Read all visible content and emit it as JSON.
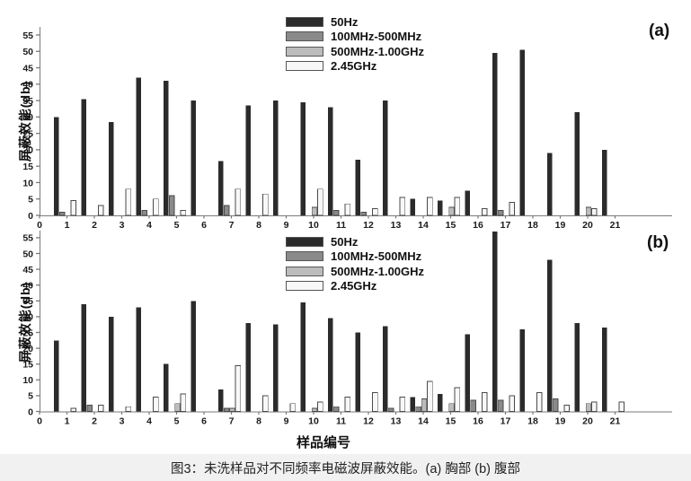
{
  "figure": {
    "caption": "图3：未洗样品对不同频率电磁波屏蔽效能。(a) 胸部 (b) 腹部",
    "xlabel": "样品编号",
    "ylabel": "屏蔽效能(db)"
  },
  "legend": [
    "50Hz",
    "100MHz-500MHz",
    "500MHz-1.00GHz",
    "2.45GHz"
  ],
  "colors": {
    "series": [
      "#2b2b2b",
      "#8a8a8a",
      "#bcbcbc",
      "#f8f8f8"
    ],
    "bar_border": "#4a4a4a",
    "axis": "#7a7a7a",
    "tick_text": "#1a1a1a",
    "caption_band": "#f1f1f1"
  },
  "chart_data": [
    {
      "type": "bar",
      "panel_label": "(a)",
      "panel_region": "胸部",
      "xlabel": "样品编号",
      "ylabel": "屏蔽效能(db)",
      "ylim": [
        0,
        55
      ],
      "ytick_step": 5,
      "xticks": [
        0,
        1,
        2,
        3,
        4,
        5,
        6,
        7,
        8,
        9,
        10,
        11,
        12,
        13,
        14,
        15,
        16,
        17,
        18,
        19,
        20,
        21
      ],
      "grid": false,
      "legend_position": "top-center-inside",
      "categories": [
        1,
        2,
        3,
        4,
        5,
        6,
        7,
        8,
        9,
        10,
        11,
        12,
        13,
        14,
        15,
        16,
        17,
        18,
        19,
        20,
        21
      ],
      "series": [
        {
          "name": "50Hz",
          "values": [
            30,
            35.5,
            28.5,
            42,
            41,
            35,
            16.5,
            33.5,
            35,
            34.5,
            33,
            17,
            35,
            5,
            4.5,
            7.5,
            49.5,
            50.5,
            19,
            31.5,
            20
          ]
        },
        {
          "name": "100MHz-500MHz",
          "values": [
            1,
            0,
            0,
            1.5,
            6,
            0,
            3,
            0,
            0,
            0,
            1.5,
            1,
            0,
            0,
            0,
            0,
            1.5,
            0,
            0,
            0,
            0
          ]
        },
        {
          "name": "500MHz-1.00GHz",
          "values": [
            0,
            0,
            0,
            0,
            0,
            0,
            0,
            0,
            0,
            2.5,
            0,
            0,
            0,
            0,
            2.5,
            0,
            0,
            0,
            0,
            2.5,
            0
          ]
        },
        {
          "name": "2.45GHz",
          "values": [
            4.5,
            3,
            8,
            5,
            1.5,
            0,
            8,
            6.5,
            0,
            8,
            3.5,
            2,
            5.5,
            5.5,
            5.5,
            2,
            4,
            0,
            0,
            2,
            0
          ]
        }
      ]
    },
    {
      "type": "bar",
      "panel_label": "(b)",
      "panel_region": "腹部",
      "xlabel": "样品编号",
      "ylabel": "屏蔽效能(db)",
      "ylim": [
        0,
        55
      ],
      "ytick_step": 5,
      "xticks": [
        0,
        1,
        2,
        3,
        4,
        5,
        6,
        7,
        8,
        9,
        10,
        11,
        12,
        13,
        14,
        15,
        16,
        17,
        18,
        19,
        20,
        21
      ],
      "grid": false,
      "legend_position": "top-center-inside",
      "categories": [
        1,
        2,
        3,
        4,
        5,
        6,
        7,
        8,
        9,
        10,
        11,
        12,
        13,
        14,
        15,
        16,
        17,
        18,
        19,
        20,
        21
      ],
      "series": [
        {
          "name": "50Hz",
          "values": [
            22.5,
            34,
            30,
            33,
            15,
            35,
            7,
            28,
            27.5,
            34.5,
            29.5,
            25,
            27,
            4.5,
            5.5,
            24.5,
            57,
            26,
            48,
            28,
            26.5
          ]
        },
        {
          "name": "100MHz-500MHz",
          "values": [
            0,
            2,
            0,
            0,
            0,
            0,
            1,
            0,
            0,
            0,
            1.5,
            0,
            1,
            1.5,
            0,
            3.5,
            3.5,
            0,
            4,
            0,
            0
          ]
        },
        {
          "name": "500MHz-1.00GHz",
          "values": [
            0,
            0,
            0,
            0,
            2.5,
            0,
            1,
            0,
            0,
            1,
            0,
            0,
            0,
            4,
            2.5,
            0,
            0,
            0,
            0,
            2.5,
            0
          ]
        },
        {
          "name": "2.45GHz",
          "values": [
            1,
            2,
            1.5,
            4.5,
            5.5,
            0,
            14.5,
            5,
            2.5,
            3,
            4.5,
            6,
            4.5,
            9.5,
            7.5,
            6,
            5,
            6,
            2,
            3,
            3
          ]
        }
      ]
    }
  ]
}
